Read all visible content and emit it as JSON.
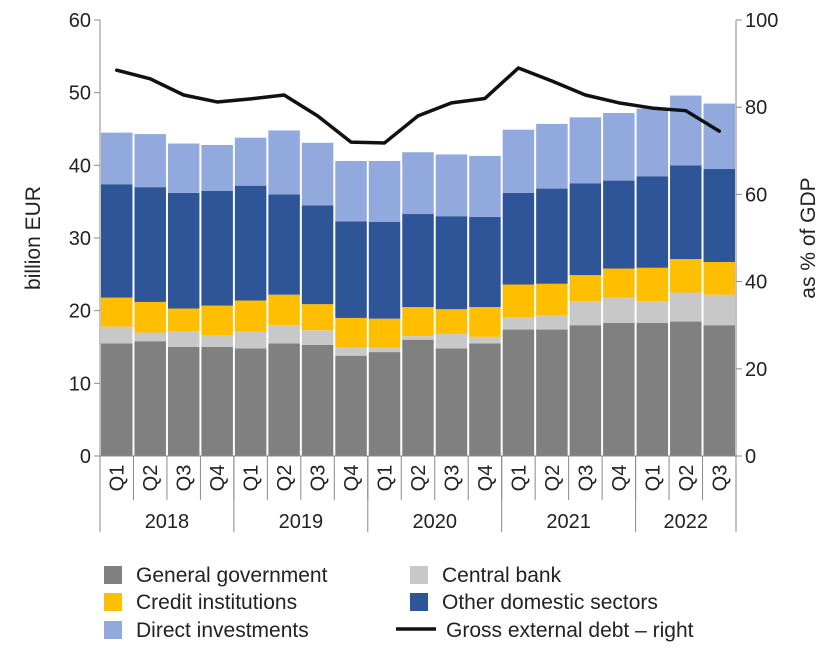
{
  "chart_data": {
    "type": "bar",
    "stacked": true,
    "categories": [
      "Q1",
      "Q2",
      "Q3",
      "Q4",
      "Q1",
      "Q2",
      "Q3",
      "Q4",
      "Q1",
      "Q2",
      "Q3",
      "Q4",
      "Q1",
      "Q2",
      "Q3",
      "Q4",
      "Q1",
      "Q2",
      "Q3"
    ],
    "year_groups": [
      {
        "label": "2018",
        "count": 4
      },
      {
        "label": "2019",
        "count": 4
      },
      {
        "label": "2020",
        "count": 4
      },
      {
        "label": "2021",
        "count": 4
      },
      {
        "label": "2022",
        "count": 3
      }
    ],
    "series": [
      {
        "name": "General government",
        "color": "#808080",
        "values": [
          15.5,
          15.8,
          15.0,
          15.0,
          14.8,
          15.5,
          15.3,
          13.8,
          14.3,
          16.0,
          14.8,
          15.5,
          17.4,
          17.4,
          18.0,
          18.3,
          18.3,
          18.5,
          18.0
        ]
      },
      {
        "name": "Central bank",
        "color": "#c8c8c8",
        "values": [
          2.3,
          1.2,
          2.2,
          1.6,
          2.3,
          2.5,
          2.0,
          1.2,
          0.6,
          0.5,
          2.0,
          0.9,
          1.7,
          2.0,
          3.3,
          3.5,
          3.0,
          4.0,
          4.2
        ]
      },
      {
        "name": "Credit institutions",
        "color": "#ffbe00",
        "values": [
          4.0,
          4.2,
          3.1,
          4.1,
          4.3,
          4.2,
          3.6,
          4.0,
          4.0,
          4.0,
          3.4,
          4.1,
          4.5,
          4.3,
          3.6,
          4.0,
          4.6,
          4.6,
          4.5
        ]
      },
      {
        "name": "Other domestic sectors",
        "color": "#2e5597",
        "values": [
          15.6,
          15.8,
          15.9,
          15.8,
          15.8,
          13.8,
          13.6,
          13.3,
          13.3,
          12.8,
          12.8,
          12.4,
          12.6,
          13.1,
          12.6,
          12.1,
          12.6,
          12.9,
          12.8
        ]
      },
      {
        "name": "Direct investments",
        "color": "#91a9dc",
        "values": [
          7.1,
          7.3,
          6.8,
          6.3,
          6.6,
          8.8,
          8.6,
          8.3,
          8.4,
          8.5,
          8.5,
          8.4,
          8.7,
          8.9,
          9.1,
          9.3,
          9.3,
          9.6,
          9.0
        ]
      }
    ],
    "line_series": {
      "name": "Gross external debt – right",
      "axis": "right",
      "color": "#111111",
      "values": [
        88.5,
        86.5,
        82.8,
        81.2,
        81.9,
        82.8,
        78.0,
        72.0,
        71.8,
        78.0,
        81.0,
        82.0,
        89.0,
        86.0,
        82.8,
        81.0,
        79.8,
        79.2,
        74.5
      ]
    },
    "ylabel": "billion EUR",
    "ylabel_right": "as % of GDP",
    "ylim": [
      0,
      60
    ],
    "ylim_right": [
      0,
      100
    ],
    "yticks": [
      0,
      10,
      20,
      30,
      40,
      50,
      60
    ],
    "yticks_right": [
      0,
      20,
      40,
      60,
      80,
      100
    ],
    "grid": false,
    "legend_position": "bottom",
    "legend": [
      {
        "label": "General government",
        "series": "General government",
        "kind": "box"
      },
      {
        "label": "Central bank",
        "series": "Central bank",
        "kind": "box"
      },
      {
        "label": "Credit institutions",
        "series": "Credit institutions",
        "kind": "box"
      },
      {
        "label": "Other domestic sectors",
        "series": "Other domestic sectors",
        "kind": "box"
      },
      {
        "label": "Direct investments",
        "series": "Direct investments",
        "kind": "box"
      },
      {
        "label": "Gross external debt – right",
        "series": "Gross external debt – right",
        "kind": "line"
      }
    ]
  }
}
